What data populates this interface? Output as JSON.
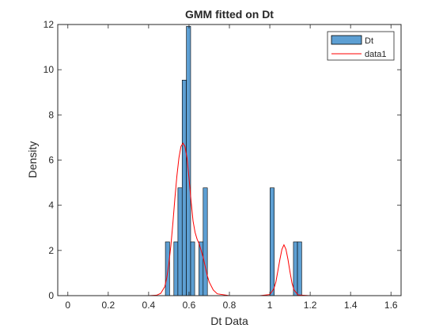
{
  "chart_data": {
    "type": "bar",
    "title": "GMM fitted on Dt",
    "xlabel": "Dt Data",
    "ylabel": "Density",
    "xlim": [
      -0.05,
      1.65
    ],
    "ylim": [
      0,
      12
    ],
    "xticks": [
      0,
      0.2,
      0.4,
      0.6,
      0.8,
      1,
      1.2,
      1.4,
      1.6
    ],
    "yticks": [
      0,
      2,
      4,
      6,
      8,
      10,
      12
    ],
    "x_tick_labels": [
      "0",
      "0.2",
      "0.4",
      "0.6",
      "0.8",
      "1",
      "1.2",
      "1.4",
      "1.6"
    ],
    "y_tick_labels": [
      "0",
      "2",
      "4",
      "6",
      "8",
      "10",
      "12"
    ],
    "legend_position": "top-right",
    "grid": false,
    "histogram": {
      "name": "Dt",
      "color": "#5d9fd3",
      "edge_color": "#000000",
      "bins": [
        {
          "x0": 0.483,
          "x1": 0.504,
          "value": 2.38
        },
        {
          "x0": 0.504,
          "x1": 0.525,
          "value": 0
        },
        {
          "x0": 0.525,
          "x1": 0.545,
          "value": 2.38
        },
        {
          "x0": 0.545,
          "x1": 0.566,
          "value": 4.77
        },
        {
          "x0": 0.566,
          "x1": 0.587,
          "value": 9.54
        },
        {
          "x0": 0.587,
          "x1": 0.608,
          "value": 11.92
        },
        {
          "x0": 0.608,
          "x1": 0.628,
          "value": 2.38
        },
        {
          "x0": 0.628,
          "x1": 0.649,
          "value": 0
        },
        {
          "x0": 0.649,
          "x1": 0.67,
          "value": 2.38
        },
        {
          "x0": 0.67,
          "x1": 0.691,
          "value": 4.77
        },
        {
          "x0": 1.001,
          "x1": 1.022,
          "value": 4.77
        },
        {
          "x0": 1.117,
          "x1": 1.137,
          "value": 2.38
        },
        {
          "x0": 1.137,
          "x1": 1.158,
          "value": 2.38
        }
      ]
    },
    "series": [
      {
        "name": "data1",
        "type": "line",
        "color": "#ff0000",
        "x": [
          0,
          0.4,
          0.44,
          0.46,
          0.48,
          0.49,
          0.5,
          0.51,
          0.52,
          0.53,
          0.54,
          0.55,
          0.56,
          0.57,
          0.58,
          0.59,
          0.6,
          0.61,
          0.62,
          0.63,
          0.64,
          0.65,
          0.66,
          0.67,
          0.68,
          0.69,
          0.7,
          0.72,
          0.74,
          0.8,
          0.95,
          1.0,
          1.02,
          1.03,
          1.04,
          1.05,
          1.06,
          1.07,
          1.08,
          1.09,
          1.1,
          1.11,
          1.12,
          1.14,
          1.2,
          1.6
        ],
        "y": [
          0,
          0,
          0.02,
          0.1,
          0.4,
          0.8,
          1.4,
          2.2,
          3.2,
          4.3,
          5.3,
          6.1,
          6.6,
          6.75,
          6.6,
          6.1,
          5.2,
          4.2,
          3.3,
          2.8,
          2.5,
          2.3,
          2.0,
          1.7,
          1.3,
          0.9,
          0.6,
          0.25,
          0.08,
          0,
          0,
          0.05,
          0.3,
          0.6,
          1.1,
          1.6,
          2.05,
          2.25,
          2.05,
          1.6,
          1.05,
          0.55,
          0.25,
          0.03,
          0,
          0
        ]
      }
    ]
  }
}
